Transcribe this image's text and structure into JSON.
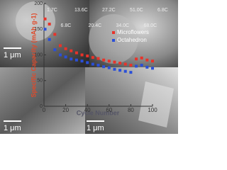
{
  "chart_data": {
    "type": "line",
    "x_label": "Cycle Number",
    "y_label": "Specific Capacity (mAh g-1)",
    "x": [
      1,
      5,
      10,
      15,
      20,
      25,
      30,
      35,
      40,
      45,
      50,
      55,
      60,
      65,
      70,
      75,
      80,
      85,
      90,
      95,
      100
    ],
    "series": [
      {
        "name": "Microflowers",
        "color": "#e8332a",
        "values": [
          170,
          160,
          140,
          118,
          112,
          108,
          104,
          100,
          98,
          95,
          93,
          90,
          88,
          86,
          84,
          82,
          80,
          92,
          94,
          90,
          88
        ]
      },
      {
        "name": "Octahedron",
        "color": "#2a4fd8",
        "values": [
          150,
          130,
          110,
          100,
          96,
          92,
          90,
          88,
          85,
          82,
          80,
          77,
          75,
          72,
          70,
          68,
          66,
          78,
          80,
          76,
          74
        ]
      }
    ],
    "xlim": [
      0,
      100
    ],
    "xticks": [
      0,
      20,
      40,
      60,
      80,
      100
    ],
    "ylim": [
      0,
      200
    ],
    "yticks": [
      0,
      50,
      100,
      150,
      200
    ],
    "annotations": [
      "1.7C",
      "6.8C",
      "13.6C",
      "20.4C",
      "27.2C",
      "34.0C",
      "51.0C",
      "68.0C",
      "6.8C"
    ],
    "scale_labels": [
      "1 μm",
      "1 μm",
      "1 μm"
    ]
  }
}
